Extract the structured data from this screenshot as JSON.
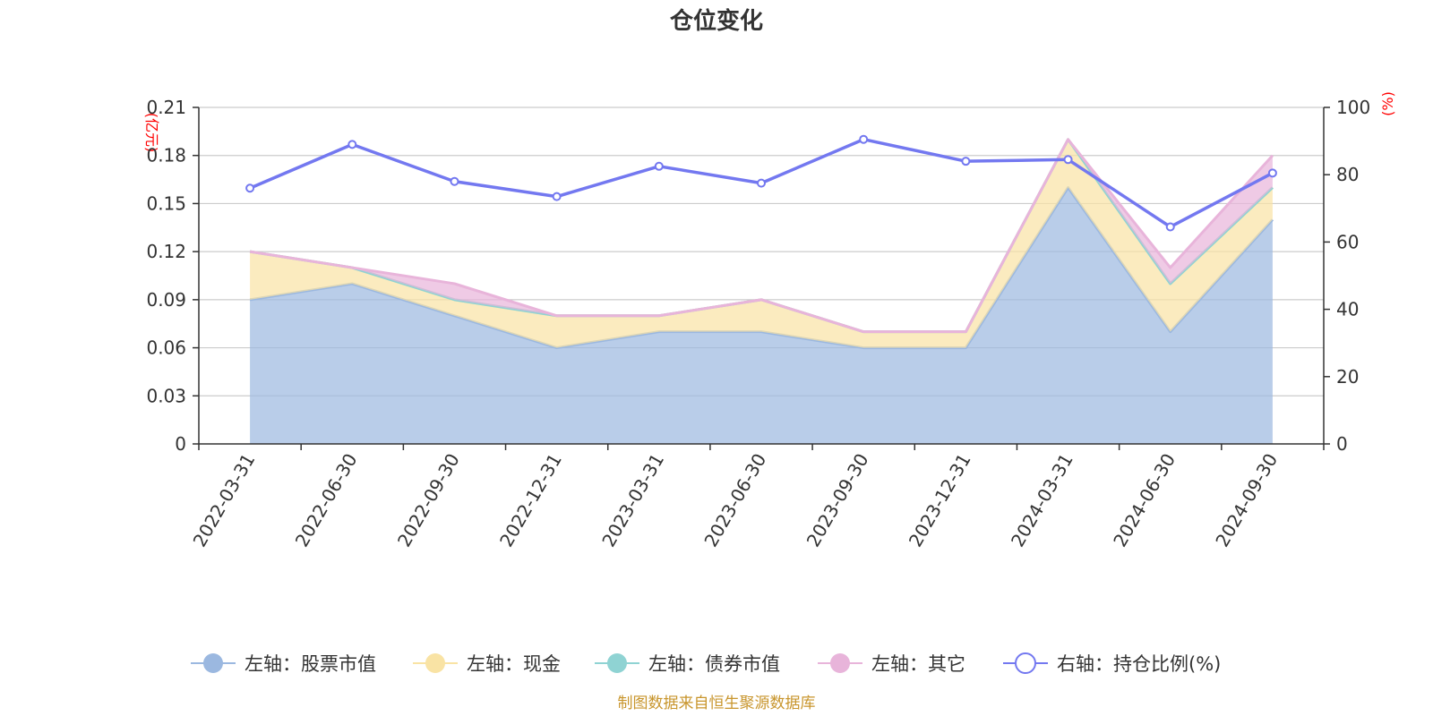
{
  "chart_data": {
    "type": "area",
    "title": "仓位变化",
    "categories": [
      "2022-03-31",
      "2022-06-30",
      "2022-09-30",
      "2022-12-31",
      "2023-03-31",
      "2023-06-30",
      "2023-09-30",
      "2023-12-31",
      "2024-03-31",
      "2024-06-30",
      "2024-09-30"
    ],
    "left_axis": {
      "unit": "(亿元)",
      "ylim": [
        0,
        0.21
      ],
      "ticks": [
        "0",
        "0.03",
        "0.06",
        "0.09",
        "0.12",
        "0.15",
        "0.18",
        "0.21"
      ]
    },
    "right_axis": {
      "unit": "(%)",
      "ylim": [
        0,
        100
      ],
      "ticks": [
        "0",
        "20",
        "40",
        "60",
        "80",
        "100"
      ]
    },
    "series": [
      {
        "name": "左轴：股票市值",
        "axis": "left",
        "kind": "stacked-area",
        "color": "#9bb8e0",
        "values": [
          0.09,
          0.1,
          0.08,
          0.06,
          0.07,
          0.07,
          0.06,
          0.06,
          0.16,
          0.07,
          0.14
        ]
      },
      {
        "name": "左轴：现金",
        "axis": "left",
        "kind": "stacked-area",
        "color": "#f9e3a4",
        "values": [
          0.03,
          0.01,
          0.01,
          0.02,
          0.01,
          0.02,
          0.01,
          0.01,
          0.03,
          0.03,
          0.02
        ]
      },
      {
        "name": "左轴：债券市值",
        "axis": "left",
        "kind": "stacked-area",
        "color": "#8fd3d3",
        "values": [
          0,
          0,
          0,
          0,
          0,
          0,
          0,
          0,
          0,
          0,
          0
        ]
      },
      {
        "name": "左轴：其它",
        "axis": "left",
        "kind": "stacked-area",
        "color": "#e8b4da",
        "values": [
          0,
          0,
          0.01,
          0,
          0,
          0,
          0,
          0,
          0,
          0.01,
          0.02
        ]
      },
      {
        "name": "右轴：持仓比例(%)",
        "axis": "right",
        "kind": "line",
        "color": "#7378f0",
        "values": [
          76,
          89,
          78,
          73.5,
          82.5,
          77.5,
          90.5,
          84,
          84.5,
          64.5,
          80.5
        ]
      }
    ],
    "grid": true,
    "legend_position": "bottom"
  },
  "source": "制图数据来自恒生聚源数据库"
}
